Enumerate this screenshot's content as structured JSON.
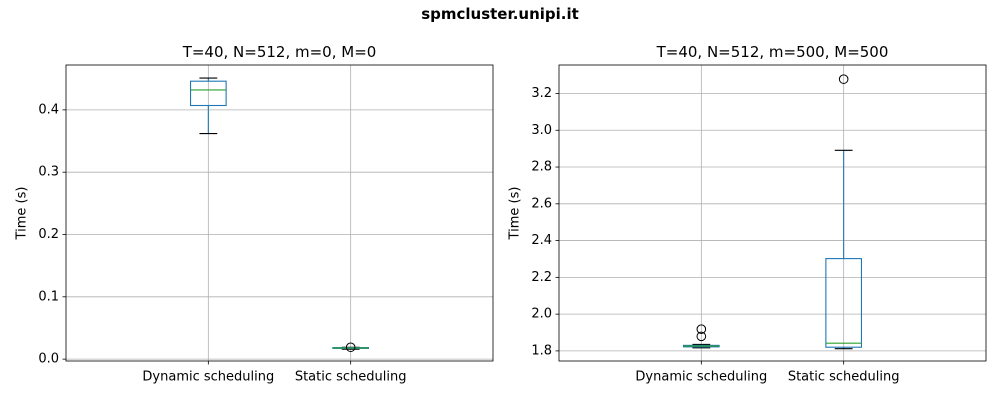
{
  "figure": {
    "suptitle": "spmcluster.unipi.it",
    "colors": {
      "box": "#1f77b4",
      "median": "#2ca02c",
      "grid": "#b0b0b0",
      "whisker_cap": "#000000"
    }
  },
  "chart_data": [
    {
      "type": "box",
      "title": "T=40, N=512, m=0, M=0",
      "xlabel": "",
      "ylabel": "Time (s)",
      "ylim": [
        -0.003,
        0.472
      ],
      "yticks": [
        0.0,
        0.1,
        0.2,
        0.3,
        0.4
      ],
      "ytick_labels": [
        "0.0",
        "0.1",
        "0.2",
        "0.3",
        "0.4"
      ],
      "grid": true,
      "categories": [
        "Dynamic scheduling",
        "Static scheduling"
      ],
      "boxes": [
        {
          "whisker_low": 0.362,
          "q1": 0.407,
          "median": 0.432,
          "q3": 0.446,
          "whisker_high": 0.451,
          "outliers": []
        },
        {
          "whisker_low": 0.016,
          "q1": 0.0175,
          "median": 0.018,
          "q3": 0.0185,
          "whisker_high": 0.019,
          "outliers": [
            0.019
          ]
        }
      ]
    },
    {
      "type": "box",
      "title": "T=40, N=512, m=500, M=500",
      "xlabel": "",
      "ylabel": "Time (s)",
      "ylim": [
        1.745,
        3.355
      ],
      "yticks": [
        1.8,
        2.0,
        2.2,
        2.4,
        2.6,
        2.8,
        3.0,
        3.2
      ],
      "ytick_labels": [
        "1.8",
        "2.0",
        "2.2",
        "2.4",
        "2.6",
        "2.8",
        "3.0",
        "3.2"
      ],
      "grid": true,
      "categories": [
        "Dynamic scheduling",
        "Static scheduling"
      ],
      "boxes": [
        {
          "whisker_low": 1.817,
          "q1": 1.822,
          "median": 1.826,
          "q3": 1.83,
          "whisker_high": 1.835,
          "outliers": [
            1.879,
            1.918
          ]
        },
        {
          "whisker_low": 1.812,
          "q1": 1.82,
          "median": 1.842,
          "q3": 2.302,
          "whisker_high": 2.891,
          "outliers": [
            3.278
          ]
        }
      ]
    }
  ]
}
